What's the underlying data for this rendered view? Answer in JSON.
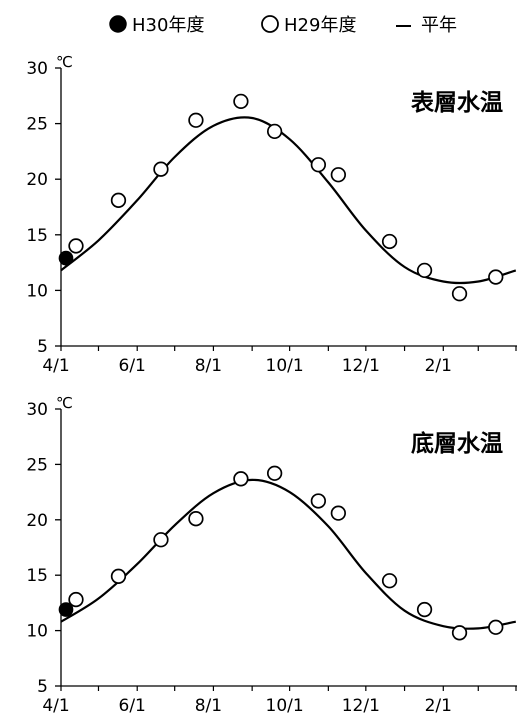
{
  "legend": {
    "items": [
      {
        "label": "H30年度",
        "marker": "filled-circle"
      },
      {
        "label": "H29年度",
        "marker": "open-circle"
      },
      {
        "label": "平年",
        "marker": "line"
      }
    ]
  },
  "chart_data": [
    {
      "type": "scatter",
      "title": "表層水温",
      "unit_label": "℃",
      "ylim": [
        5,
        30
      ],
      "yticks": [
        5,
        10,
        15,
        20,
        25,
        30
      ],
      "x_ticks": [
        "4/1",
        "6/1",
        "8/1",
        "10/1",
        "12/1",
        "2/1"
      ],
      "grid": false,
      "series": [
        {
          "name": "H30年度",
          "marker": "filled-circle",
          "points": [
            {
              "x": "4/5",
              "y": 12.9
            }
          ]
        },
        {
          "name": "H29年度",
          "marker": "open-circle",
          "points": [
            {
              "x": "4/13",
              "y": 14.0
            },
            {
              "x": "5/17",
              "y": 18.1
            },
            {
              "x": "6/20",
              "y": 20.9
            },
            {
              "x": "7/18",
              "y": 25.3
            },
            {
              "x": "8/23",
              "y": 27.0
            },
            {
              "x": "9/19",
              "y": 24.3
            },
            {
              "x": "10/24",
              "y": 21.3
            },
            {
              "x": "11/9",
              "y": 20.4
            },
            {
              "x": "12/20",
              "y": 14.4
            },
            {
              "x": "1/17",
              "y": 11.8
            },
            {
              "x": "2/14",
              "y": 9.7
            },
            {
              "x": "3/15",
              "y": 11.2
            }
          ]
        },
        {
          "name": "平年",
          "marker": "line",
          "points": [
            {
              "x": "4/1",
              "y": 11.8
            },
            {
              "x": "5/1",
              "y": 14.5
            },
            {
              "x": "6/1",
              "y": 18.1
            },
            {
              "x": "7/1",
              "y": 22.0
            },
            {
              "x": "8/1",
              "y": 24.8
            },
            {
              "x": "9/1",
              "y": 25.5
            },
            {
              "x": "10/1",
              "y": 23.6
            },
            {
              "x": "11/1",
              "y": 19.7
            },
            {
              "x": "12/1",
              "y": 15.4
            },
            {
              "x": "1/1",
              "y": 12.1
            },
            {
              "x": "2/1",
              "y": 10.8
            },
            {
              "x": "3/1",
              "y": 10.8
            },
            {
              "x": "3/31",
              "y": 11.8
            }
          ]
        }
      ]
    },
    {
      "type": "scatter",
      "title": "底層水温",
      "unit_label": "℃",
      "ylim": [
        5,
        30
      ],
      "yticks": [
        5,
        10,
        15,
        20,
        25,
        30
      ],
      "x_ticks": [
        "4/1",
        "6/1",
        "8/1",
        "10/1",
        "12/1",
        "2/1"
      ],
      "grid": false,
      "series": [
        {
          "name": "H30年度",
          "marker": "filled-circle",
          "points": [
            {
              "x": "4/5",
              "y": 11.9
            }
          ]
        },
        {
          "name": "H29年度",
          "marker": "open-circle",
          "points": [
            {
              "x": "4/13",
              "y": 12.8
            },
            {
              "x": "5/17",
              "y": 14.9
            },
            {
              "x": "6/20",
              "y": 18.2
            },
            {
              "x": "7/18",
              "y": 20.1
            },
            {
              "x": "8/23",
              "y": 23.7
            },
            {
              "x": "9/19",
              "y": 24.2
            },
            {
              "x": "10/24",
              "y": 21.7
            },
            {
              "x": "11/9",
              "y": 20.6
            },
            {
              "x": "12/20",
              "y": 14.5
            },
            {
              "x": "1/17",
              "y": 11.9
            },
            {
              "x": "2/14",
              "y": 9.8
            },
            {
              "x": "3/15",
              "y": 10.3
            }
          ]
        },
        {
          "name": "平年",
          "marker": "line",
          "points": [
            {
              "x": "4/1",
              "y": 10.8
            },
            {
              "x": "5/1",
              "y": 12.9
            },
            {
              "x": "6/1",
              "y": 16.0
            },
            {
              "x": "7/1",
              "y": 19.5
            },
            {
              "x": "8/1",
              "y": 22.4
            },
            {
              "x": "9/1",
              "y": 23.6
            },
            {
              "x": "10/1",
              "y": 22.5
            },
            {
              "x": "11/1",
              "y": 19.4
            },
            {
              "x": "12/1",
              "y": 15.2
            },
            {
              "x": "1/1",
              "y": 11.8
            },
            {
              "x": "2/1",
              "y": 10.4
            },
            {
              "x": "3/1",
              "y": 10.2
            },
            {
              "x": "3/31",
              "y": 10.8
            }
          ]
        }
      ]
    }
  ]
}
